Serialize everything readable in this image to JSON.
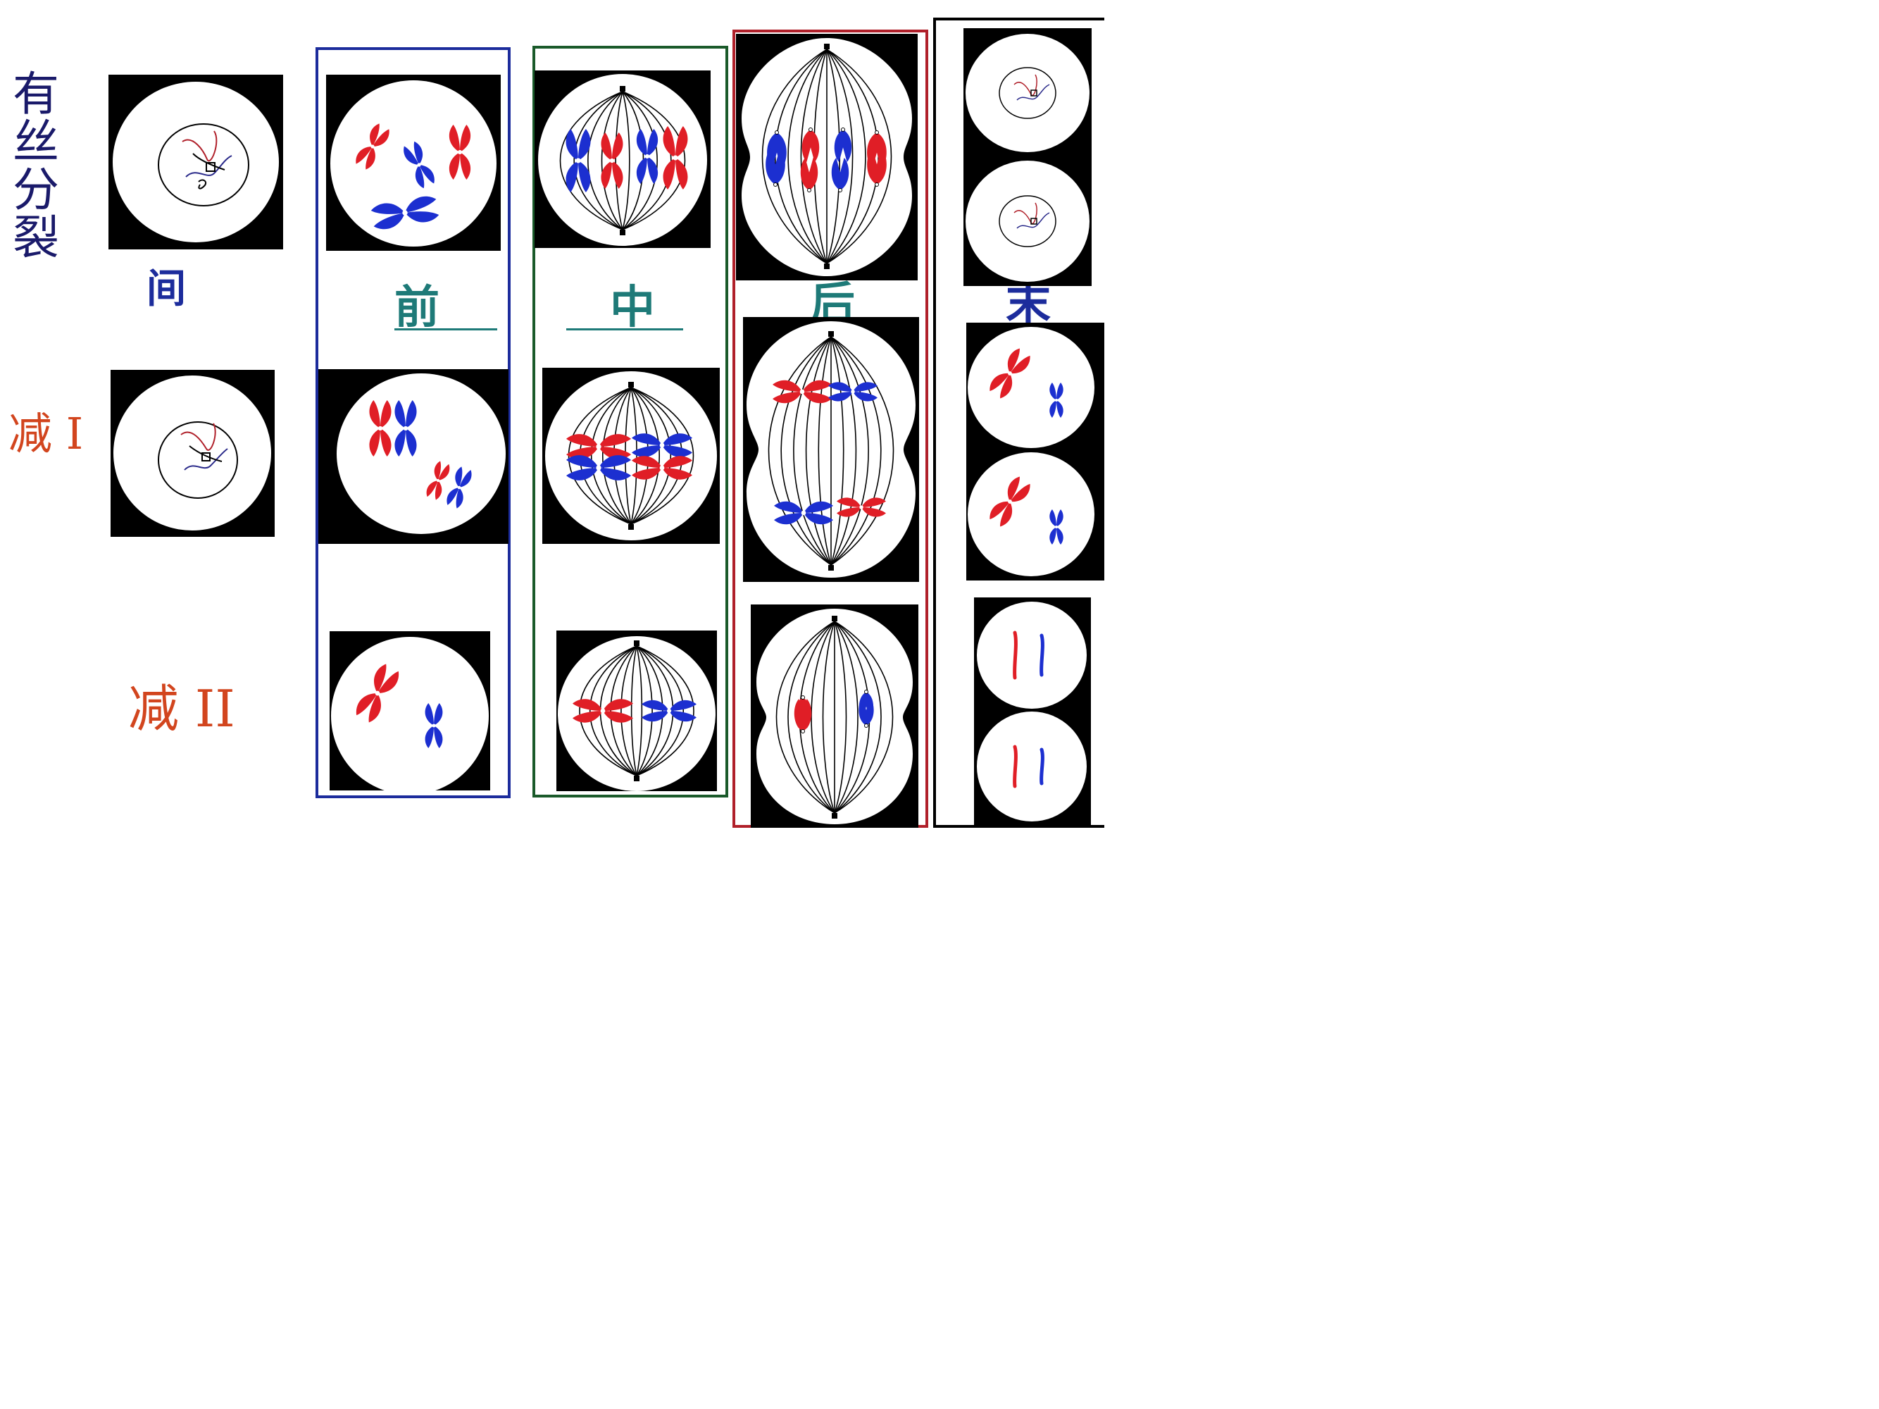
{
  "row_labels": {
    "mitosis": [
      "有",
      "丝",
      "分",
      "裂"
    ],
    "meiosis1": "减 I",
    "meiosis2": "减 II"
  },
  "phase_labels": {
    "interphase": "间",
    "prophase": "前",
    "metaphase": "中",
    "anaphase": "后",
    "telophase": "末"
  },
  "colors": {
    "chromosome_a": "#e01e26",
    "chromosome_b": "#1c2fd0",
    "prophase_frame": "#1c2c9c",
    "metaphase_frame": "#1a5a2a",
    "anaphase_frame": "#b0202a",
    "telophase_frame": "#000000",
    "mitosis_label": "#1a1a6a",
    "meiosis_label": "#d2451e",
    "interphase_label": "#1c2c9c",
    "phase_label": "#1e7a78"
  }
}
